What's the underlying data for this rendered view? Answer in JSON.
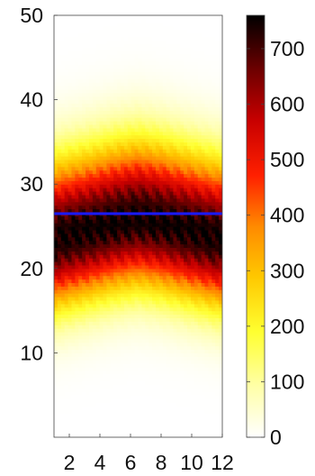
{
  "chart_data": {
    "type": "heatmap",
    "title": "",
    "xlabel": "",
    "ylabel": "",
    "x_ticks": [
      2,
      4,
      6,
      8,
      10,
      12
    ],
    "x_tick_labels": [
      "2",
      "4",
      "6",
      "8",
      "10",
      "12"
    ],
    "xlim": [
      1,
      12
    ],
    "y_ticks": [
      10,
      20,
      30,
      40,
      50
    ],
    "y_tick_labels": [
      "10",
      "20",
      "30",
      "40",
      "50"
    ],
    "ylim": [
      0,
      50
    ],
    "colorbar": {
      "colormap": "hot (reversed)",
      "ticks": [
        0,
        100,
        200,
        300,
        400,
        500,
        600,
        700
      ],
      "tick_labels": [
        "0",
        "100",
        "200",
        "300",
        "400",
        "500",
        "600",
        "700"
      ],
      "range": [
        0,
        760
      ]
    },
    "horizontal_line": {
      "y": 26.5,
      "color": "#1a1aff"
    },
    "field": {
      "description": "intensity concentrated in a band that arches upward toward the middle of the x range",
      "band_center_y": [
        23.5,
        24.5,
        25.5,
        26,
        25.5,
        24.5,
        23.5
      ],
      "band_center_x": [
        1,
        3,
        5,
        6.5,
        8,
        10,
        12
      ],
      "peak_value": 750,
      "band_half_width_y": 5.5
    },
    "grid": false
  }
}
